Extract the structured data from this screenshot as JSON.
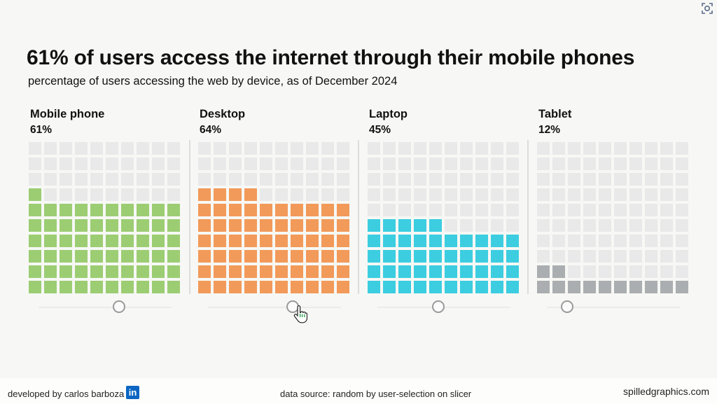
{
  "chart_data": {
    "type": "waffle",
    "title": "61% of users access the internet through their mobile phones",
    "subtitle": "percentage of users accessing the web by device, as of December 2024",
    "grid": [
      10,
      10
    ],
    "series": [
      {
        "name": "Mobile phone",
        "label": "61%",
        "value": 61,
        "color": "#9ccd73"
      },
      {
        "name": "Desktop",
        "label": "64%",
        "value": 64,
        "color": "#f29a5a"
      },
      {
        "name": "Laptop",
        "label": "45%",
        "value": 45,
        "color": "#3ccde0"
      },
      {
        "name": "Tablet",
        "label": "12%",
        "value": 12,
        "color": "#aaaeb0"
      }
    ],
    "empty_color": "#e9e9e9"
  },
  "footer": {
    "developer": "developed by carlos barboza",
    "linkedin": "in",
    "source": "data source: random by user-selection on slicer",
    "site": "spilledgraphics.com"
  },
  "icons": {
    "corner": "image-search-icon",
    "cursor": "hand-pointer-icon"
  }
}
